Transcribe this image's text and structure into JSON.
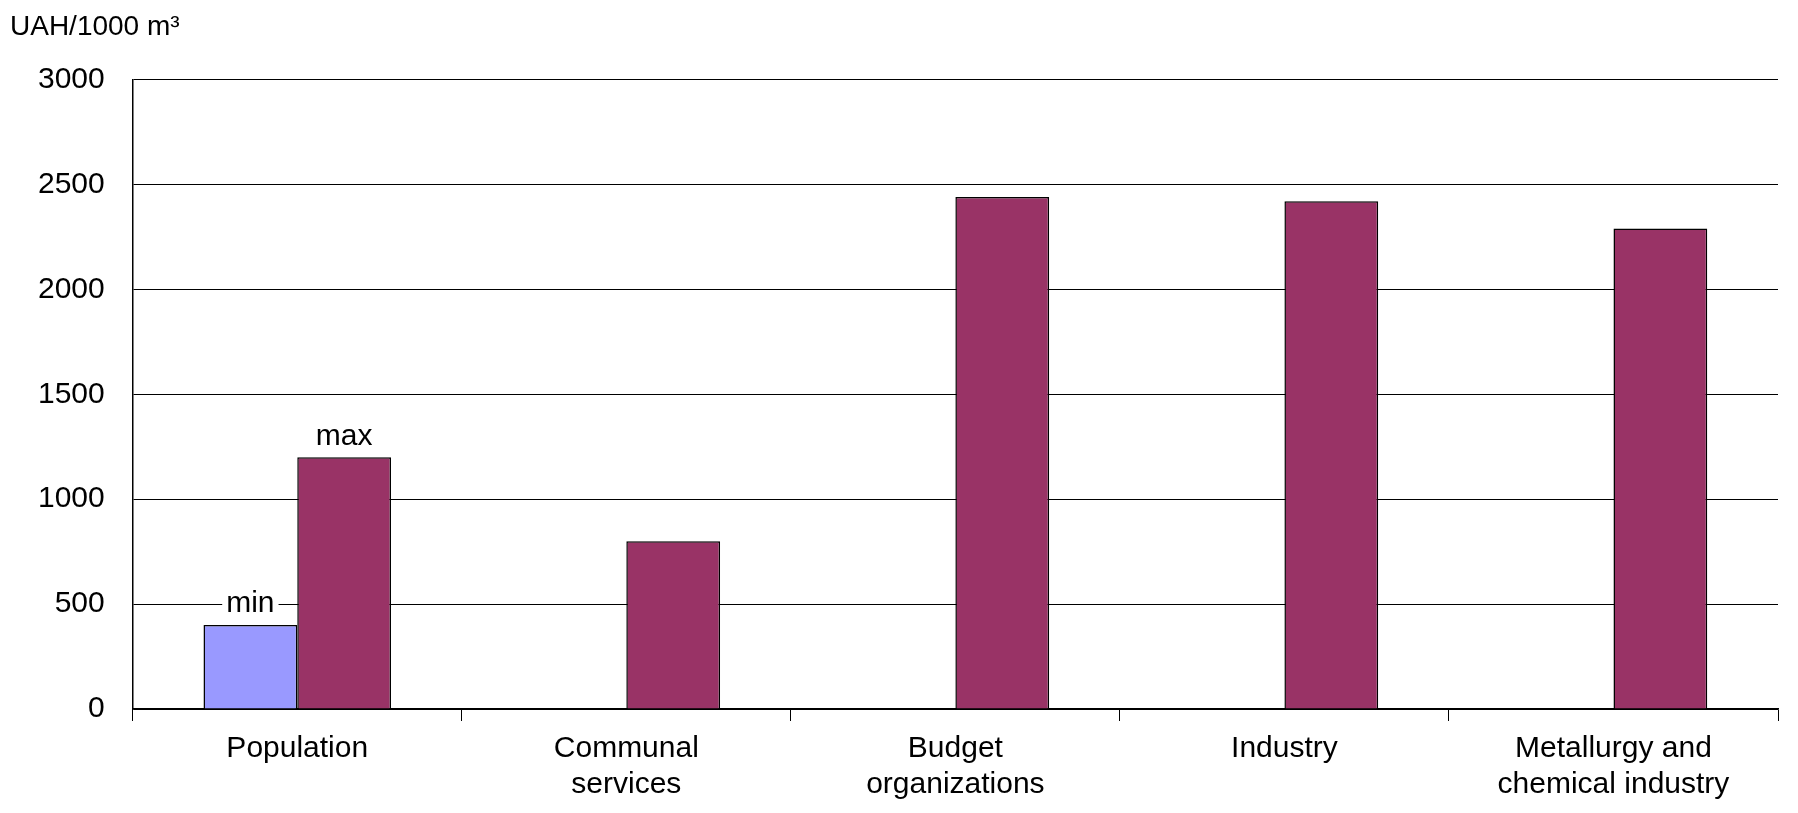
{
  "chart_data": {
    "type": "bar",
    "ylabel": "UAH/1000 m³",
    "categories": [
      "Population",
      "Communal services",
      "Budget organizations",
      "Industry",
      "Metallurgy and chemical industry"
    ],
    "series": [
      {
        "name": "min",
        "color": "#9999ff",
        "values": [
          400,
          null,
          null,
          null,
          null
        ]
      },
      {
        "name": "max",
        "color": "#993366",
        "values": [
          1200,
          800,
          2440,
          2420,
          2290
        ]
      }
    ],
    "ylim": [
      0,
      3000
    ],
    "yticks": [
      0,
      500,
      1000,
      1500,
      2000,
      2500,
      3000
    ],
    "grid": "y",
    "legend": false
  }
}
